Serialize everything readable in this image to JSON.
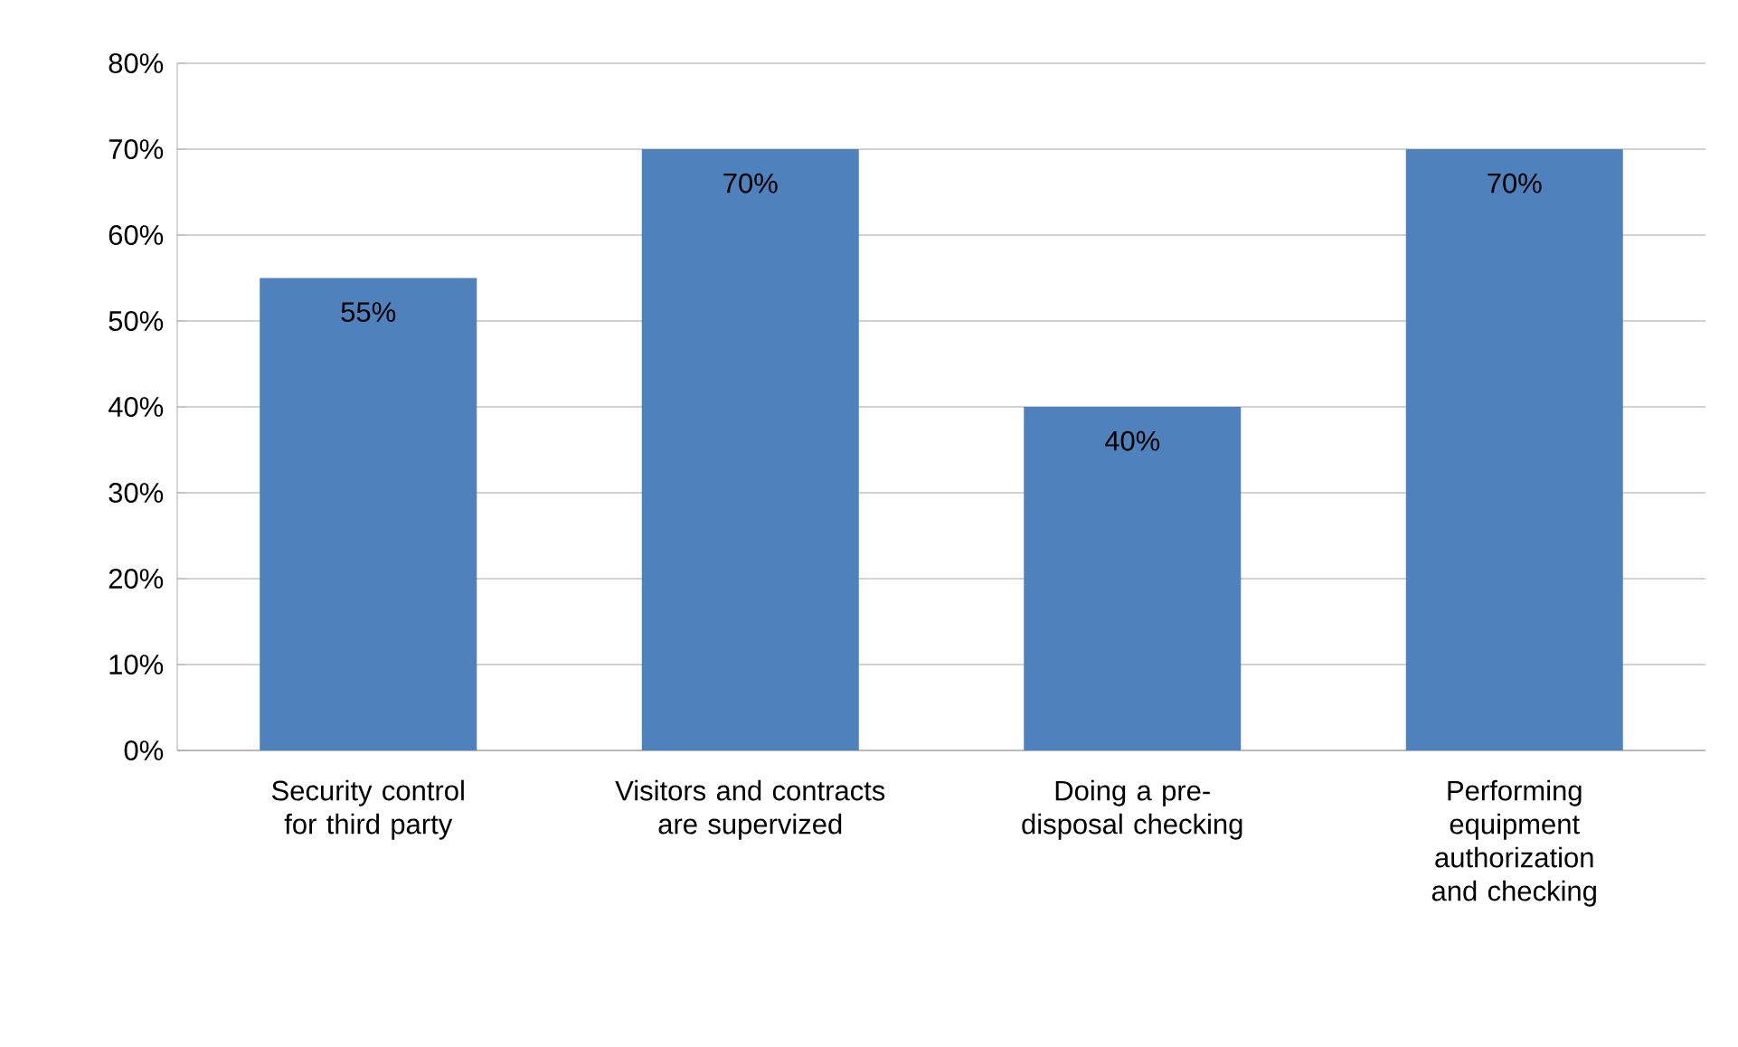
{
  "chart_data": {
    "type": "bar",
    "categories": [
      "Security control for third party",
      "Visitors and contracts are supervized",
      "Doing a pre-disposal checking",
      "Performing equipment authorization and checking"
    ],
    "values": [
      55,
      70,
      40,
      70
    ],
    "value_labels": [
      "55%",
      "70%",
      "40%",
      "70%"
    ],
    "color": "#4f81bd",
    "ylim": [
      0,
      80
    ],
    "yticks": [
      {
        "value": 0,
        "label": "0%"
      },
      {
        "value": 10,
        "label": "10%"
      },
      {
        "value": 20,
        "label": "20%"
      },
      {
        "value": 30,
        "label": "30%"
      },
      {
        "value": 40,
        "label": "40%"
      },
      {
        "value": 50,
        "label": "50%"
      },
      {
        "value": 60,
        "label": "60%"
      },
      {
        "value": 70,
        "label": "70%"
      },
      {
        "value": 80,
        "label": "80%"
      }
    ],
    "grid": "y"
  }
}
